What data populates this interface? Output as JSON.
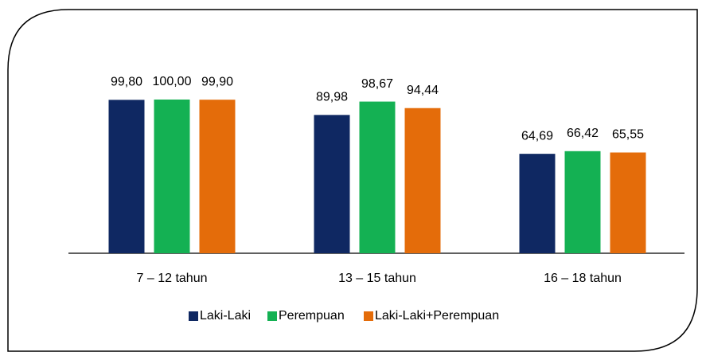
{
  "chart_data": {
    "type": "bar",
    "categories": [
      "7 – 12 tahun",
      "13 – 15 tahun",
      "16 – 18 tahun"
    ],
    "series": [
      {
        "name": "Laki-Laki",
        "color": "#0f2862",
        "values": [
          99.8,
          89.98,
          64.69
        ],
        "value_labels": [
          "99,80",
          "89,98",
          "64,69"
        ]
      },
      {
        "name": "Perempuan",
        "color": "#14b153",
        "values": [
          100.0,
          98.67,
          66.42
        ],
        "value_labels": [
          "100,00",
          "98,67",
          "66,42"
        ]
      },
      {
        "name": "Laki-Laki+Perempuan",
        "color": "#e46c0a",
        "values": [
          99.9,
          94.44,
          65.55
        ],
        "value_labels": [
          "99,90",
          "94,44",
          "65,55"
        ]
      }
    ]
  }
}
